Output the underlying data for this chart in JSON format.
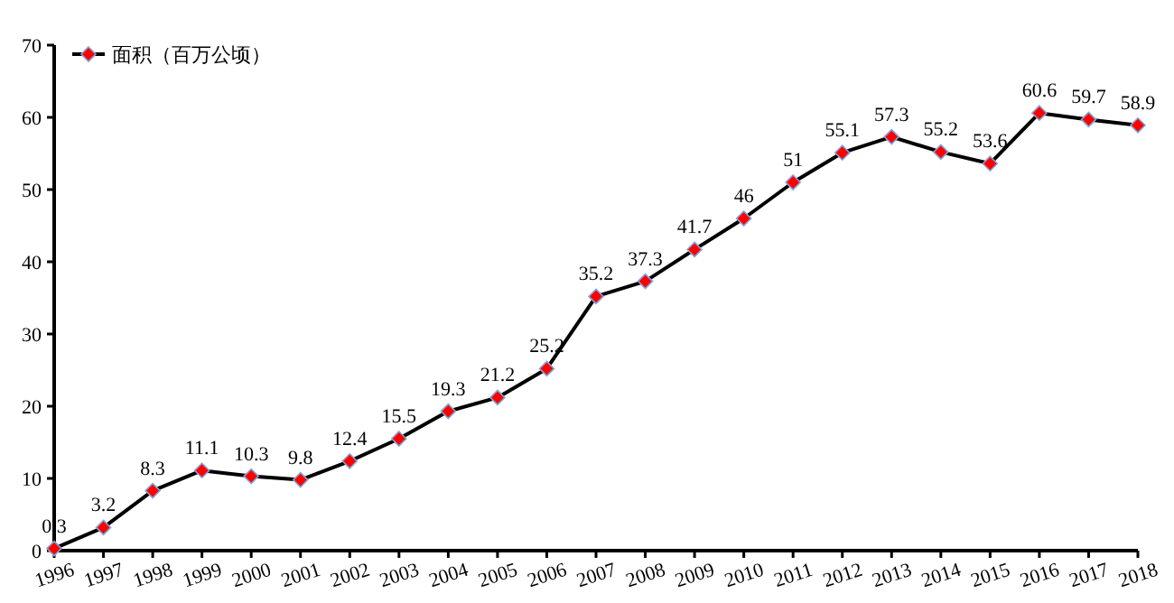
{
  "chart_data": {
    "type": "line",
    "categories": [
      "1996",
      "1997",
      "1998",
      "1999",
      "2000",
      "2001",
      "2002",
      "2003",
      "2004",
      "2005",
      "2006",
      "2007",
      "2008",
      "2009",
      "2010",
      "2011",
      "2012",
      "2013",
      "2014",
      "2015",
      "2016",
      "2017",
      "2018"
    ],
    "series": [
      {
        "name": "面积（百万公顷）",
        "color": "#000000",
        "values": [
          0.3,
          3.2,
          8.3,
          11.1,
          10.3,
          9.8,
          12.4,
          15.5,
          19.3,
          21.2,
          25.2,
          35.2,
          37.3,
          41.7,
          46,
          51,
          55.1,
          57.3,
          55.2,
          53.6,
          60.6,
          59.7,
          58.9
        ]
      }
    ],
    "ylim": [
      0,
      70
    ],
    "yticks": [
      0,
      10,
      20,
      30,
      40,
      50,
      60,
      70
    ],
    "marker": "diamond",
    "line_style": "solid",
    "grid": false,
    "legend": "top left",
    "data_labels": true
  }
}
